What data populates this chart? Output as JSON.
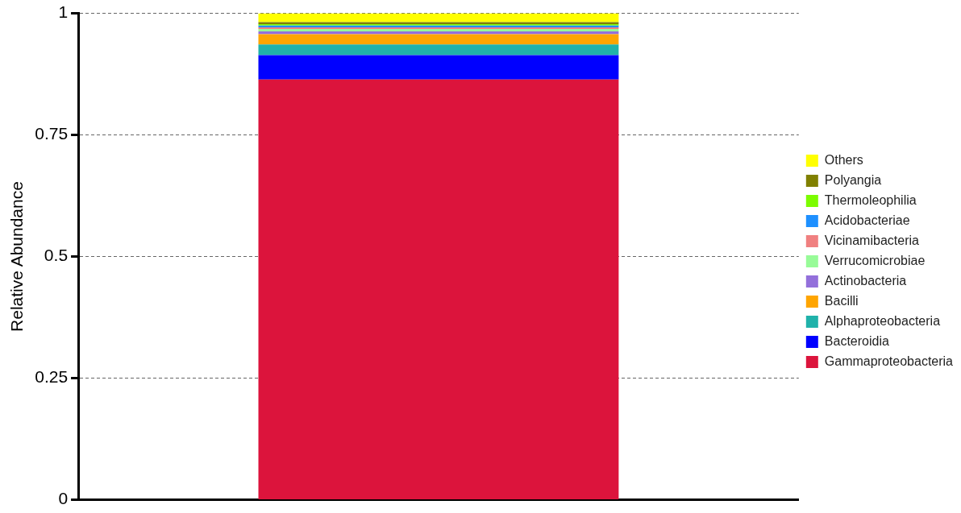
{
  "chart_data": {
    "type": "bar",
    "ylabel": "Relative Abundance",
    "categories": [
      null
    ],
    "stacked": true,
    "ylim": [
      0,
      1
    ],
    "yticks": [
      0,
      0.25,
      0.5,
      0.75,
      1
    ],
    "grid": "y",
    "legend": "right",
    "series": [
      {
        "name": "Gammaproteobacteria",
        "color": "#dc143c",
        "values": [
          0.864
        ]
      },
      {
        "name": "Bacteroidia",
        "color": "#0000ff",
        "values": [
          0.05
        ]
      },
      {
        "name": "Alphaproteobacteria",
        "color": "#20b2aa",
        "values": [
          0.022
        ]
      },
      {
        "name": "Bacilli",
        "color": "#ffa500",
        "values": [
          0.021
        ]
      },
      {
        "name": "Actinobacteria",
        "color": "#9370db",
        "values": [
          0.006
        ]
      },
      {
        "name": "Verrucomicrobiae",
        "color": "#98fb98",
        "values": [
          0.005
        ]
      },
      {
        "name": "Vicinamibacteria",
        "color": "#f08080",
        "values": [
          0.003
        ]
      },
      {
        "name": "Acidobacteriae",
        "color": "#1e90ff",
        "values": [
          0.004
        ]
      },
      {
        "name": "Thermoleophilia",
        "color": "#7cfc00",
        "values": [
          0.003
        ]
      },
      {
        "name": "Polyangia",
        "color": "#808000",
        "values": [
          0.004
        ]
      },
      {
        "name": "Others",
        "color": "#ffff00",
        "values": [
          0.018
        ]
      }
    ]
  }
}
